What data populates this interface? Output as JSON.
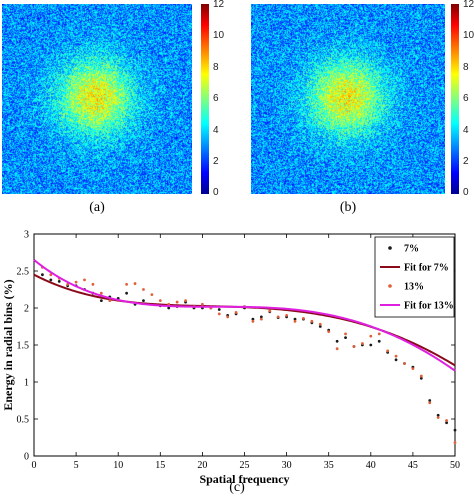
{
  "panel_a": {
    "caption": "(a)",
    "colorbar_ticks": [
      "12",
      "10",
      "8",
      "6",
      "4",
      "2",
      "0"
    ]
  },
  "panel_b": {
    "caption": "(b)",
    "colorbar_ticks": [
      "12",
      "10",
      "8",
      "6",
      "4",
      "2",
      "0"
    ]
  },
  "panel_c": {
    "caption": "(c)"
  },
  "colors": {
    "dots_7": "#1a1a1a",
    "fit_7": "#8b0a1a",
    "dots_13": "#e0603a",
    "fit_13": "#e020e0"
  },
  "chart_data": [
    {
      "type": "heatmap",
      "title": "",
      "caption": "(a)",
      "colorscale": "jet",
      "clim": [
        0,
        12
      ],
      "colorbar_ticks": [
        0,
        2,
        4,
        6,
        8,
        10,
        12
      ],
      "description": "noise-like field around ~3, peak ~8 at center"
    },
    {
      "type": "heatmap",
      "title": "",
      "caption": "(b)",
      "colorscale": "jet",
      "clim": [
        0,
        12
      ],
      "colorbar_ticks": [
        0,
        2,
        4,
        6,
        8,
        10,
        12
      ],
      "description": "noise-like field around ~3, peak ~8 at center"
    },
    {
      "type": "scatter",
      "title": "",
      "xlabel": "Spatial frequency",
      "ylabel": "Energy in radial bins (%)",
      "xlim": [
        0,
        50
      ],
      "ylim": [
        0,
        3
      ],
      "xticks": [
        0,
        5,
        10,
        15,
        20,
        25,
        30,
        35,
        40,
        45,
        50
      ],
      "yticks": [
        0,
        0.5,
        1,
        1.5,
        2,
        2.5,
        3
      ],
      "grid": false,
      "legend_position": "top-right",
      "series": [
        {
          "name": "7%",
          "kind": "points",
          "x": [
            1,
            2,
            3,
            4,
            5,
            6,
            7,
            8,
            9,
            10,
            11,
            12,
            13,
            14,
            15,
            16,
            17,
            18,
            19,
            20,
            21,
            22,
            23,
            24,
            25,
            26,
            27,
            28,
            29,
            30,
            31,
            32,
            33,
            34,
            35,
            36,
            37,
            38,
            39,
            40,
            41,
            42,
            43,
            44,
            45,
            46,
            47,
            48,
            49,
            50
          ],
          "y": [
            2.45,
            2.38,
            2.36,
            2.3,
            2.3,
            2.25,
            2.2,
            2.1,
            2.15,
            2.13,
            2.2,
            2.05,
            2.1,
            2.05,
            2.03,
            2.0,
            2.02,
            2.08,
            2.0,
            2.0,
            2.0,
            1.98,
            1.9,
            1.92,
            2.0,
            1.85,
            1.88,
            1.95,
            1.87,
            1.88,
            1.85,
            1.85,
            1.8,
            1.75,
            1.7,
            1.55,
            1.6,
            1.48,
            1.5,
            1.5,
            1.55,
            1.4,
            1.3,
            1.25,
            1.2,
            1.05,
            0.75,
            0.55,
            0.45,
            0.35
          ]
        },
        {
          "name": "Fit for 7%",
          "kind": "line",
          "coeffs": [
            2.45,
            -0.0589,
            0.00296,
            -5.91e-05,
            2.73e-07
          ]
        },
        {
          "name": "13%",
          "kind": "points",
          "x": [
            1,
            2,
            3,
            4,
            5,
            6,
            7,
            8,
            9,
            10,
            11,
            12,
            13,
            14,
            15,
            16,
            17,
            18,
            19,
            20,
            21,
            22,
            23,
            24,
            25,
            26,
            27,
            28,
            29,
            30,
            31,
            32,
            33,
            34,
            35,
            36,
            37,
            38,
            39,
            40,
            41,
            42,
            43,
            44,
            45,
            46,
            47,
            48,
            49,
            50
          ],
          "y": [
            2.55,
            2.45,
            2.4,
            2.32,
            2.35,
            2.38,
            2.32,
            2.2,
            2.1,
            2.1,
            2.32,
            2.33,
            2.25,
            2.18,
            2.1,
            2.05,
            2.08,
            2.1,
            2.02,
            2.05,
            2.0,
            1.92,
            1.88,
            1.94,
            2.02,
            1.82,
            1.85,
            1.96,
            1.88,
            1.9,
            1.82,
            1.86,
            1.82,
            1.78,
            1.68,
            1.45,
            1.65,
            1.48,
            1.52,
            1.62,
            1.65,
            1.42,
            1.35,
            1.25,
            1.18,
            1.08,
            0.72,
            0.52,
            0.48,
            0.18
          ]
        },
        {
          "name": "Fit for 13%",
          "kind": "line",
          "coeffs": [
            2.65,
            -0.0927,
            0.00474,
            -9.42e-05,
            4.9e-07
          ]
        }
      ]
    }
  ]
}
